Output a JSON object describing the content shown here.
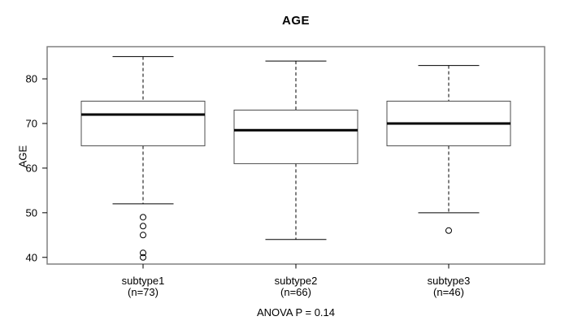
{
  "chart_data": {
    "type": "boxplot",
    "title": "AGE",
    "ylabel": "AGE",
    "xlabel": "",
    "footer": "ANOVA P = 0.14",
    "yticks": [
      40,
      50,
      60,
      70,
      80
    ],
    "ylim": [
      38.5,
      87.2
    ],
    "grid": false,
    "groups": [
      {
        "label": "subtype1",
        "sublabel": "(n=73)",
        "n": 73,
        "lower_whisker": 52,
        "q1": 65,
        "median": 72,
        "q3": 75,
        "upper_whisker": 85,
        "outliers": [
          49,
          47,
          45,
          41,
          40
        ]
      },
      {
        "label": "subtype2",
        "sublabel": "(n=66)",
        "n": 66,
        "lower_whisker": 44,
        "q1": 61,
        "median": 68.5,
        "q3": 73,
        "upper_whisker": 84,
        "outliers": []
      },
      {
        "label": "subtype3",
        "sublabel": "(n=46)",
        "n": 46,
        "lower_whisker": 50,
        "q1": 65,
        "median": 70,
        "q3": 75,
        "upper_whisker": 83,
        "outliers": [
          46
        ]
      }
    ],
    "colors": {
      "plot_border": "#808080",
      "box_stroke": "#4d4d4d",
      "line": "#000000",
      "median": "#000000",
      "background": "#ffffff"
    }
  }
}
